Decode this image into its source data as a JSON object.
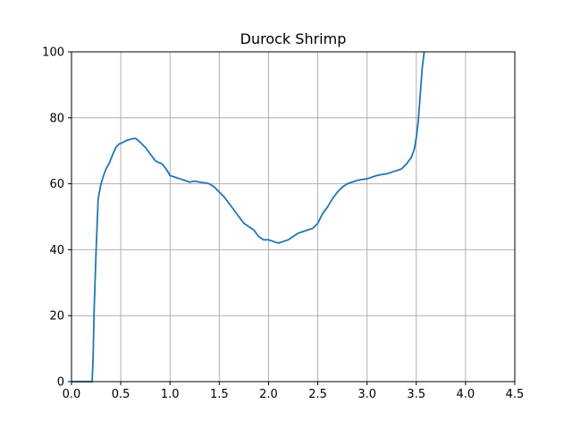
{
  "chart_data": {
    "type": "line",
    "title": "Durock Shrimp",
    "xlabel": "",
    "ylabel": "",
    "xlim": [
      0.0,
      4.5
    ],
    "ylim": [
      0,
      100
    ],
    "xticks": [
      "0.0",
      "0.5",
      "1.0",
      "1.5",
      "2.0",
      "2.5",
      "3.0",
      "3.5",
      "4.0",
      "4.5"
    ],
    "yticks": [
      "0",
      "20",
      "40",
      "60",
      "80",
      "100"
    ],
    "grid": true,
    "line_color": "#1f77b4",
    "series": [
      {
        "x": [
          0.0,
          0.19,
          0.21,
          0.22,
          0.23,
          0.25,
          0.27,
          0.28,
          0.3,
          0.32,
          0.35,
          0.38,
          0.42,
          0.45,
          0.48,
          0.52,
          0.55,
          0.6,
          0.65,
          0.7,
          0.75,
          0.8,
          0.85,
          0.88,
          0.92,
          0.96,
          1.0,
          1.05,
          1.1,
          1.15,
          1.2,
          1.25,
          1.3,
          1.35,
          1.4,
          1.45,
          1.5,
          1.55,
          1.6,
          1.65,
          1.7,
          1.75,
          1.8,
          1.85,
          1.9,
          1.95,
          2.0,
          2.05,
          2.1,
          2.15,
          2.2,
          2.25,
          2.3,
          2.35,
          2.4,
          2.45,
          2.5,
          2.55,
          2.6,
          2.65,
          2.7,
          2.75,
          2.8,
          2.85,
          2.9,
          2.95,
          3.0,
          3.05,
          3.1,
          3.15,
          3.2,
          3.25,
          3.3,
          3.35,
          3.4,
          3.45,
          3.48,
          3.5,
          3.52,
          3.54,
          3.56,
          3.58
        ],
        "y": [
          0,
          0,
          0,
          8,
          22,
          40,
          55,
          57,
          60,
          62,
          64.5,
          66,
          69,
          71,
          72,
          72.5,
          73,
          73.5,
          73.8,
          72.5,
          71,
          69,
          67,
          66.5,
          66,
          64.5,
          62.5,
          62,
          61.5,
          61,
          60.5,
          60.8,
          60.5,
          60.3,
          60,
          59,
          57.5,
          56,
          54,
          52,
          50,
          48,
          47,
          46,
          44,
          43,
          43,
          42.5,
          42,
          42.5,
          43,
          44,
          45,
          45.5,
          46,
          46.5,
          48,
          51,
          53,
          55.5,
          57.5,
          59,
          60,
          60.5,
          61,
          61.3,
          61.5,
          62,
          62.5,
          62.8,
          63,
          63.5,
          64,
          64.5,
          66,
          68,
          70.5,
          74,
          79,
          87,
          95,
          100
        ]
      }
    ]
  }
}
